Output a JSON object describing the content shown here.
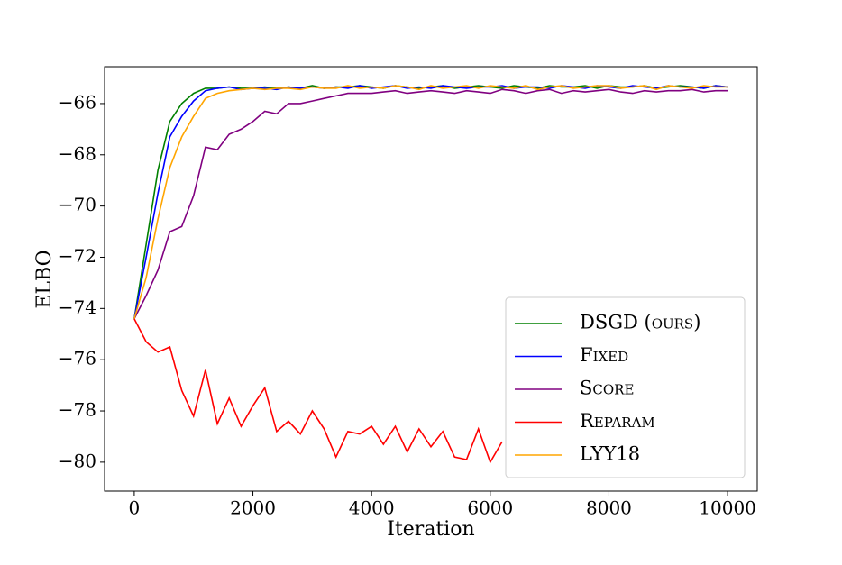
{
  "chart_data": {
    "type": "line",
    "xlabel": "Iteration",
    "ylabel": "ELBO",
    "x": [
      0,
      200,
      400,
      600,
      800,
      1000,
      1200,
      1400,
      1600,
      1800,
      2000,
      2200,
      2400,
      2600,
      2800,
      3000,
      3200,
      3400,
      3600,
      3800,
      4000,
      4200,
      4400,
      4600,
      4800,
      5000,
      5200,
      5400,
      5600,
      5800,
      6000,
      6200,
      6400,
      6600,
      6800,
      7000,
      7200,
      7400,
      7600,
      7800,
      8000,
      8200,
      8400,
      8600,
      8800,
      9000,
      9200,
      9400,
      9600,
      9800,
      10000
    ],
    "series": [
      {
        "name": "DSGD (ours)",
        "color": "#008000",
        "values": [
          -74.4,
          -71.5,
          -68.6,
          -66.7,
          -66.0,
          -65.6,
          -65.4,
          -65.4,
          -65.35,
          -65.4,
          -65.4,
          -65.35,
          -65.4,
          -65.35,
          -65.4,
          -65.3,
          -65.4,
          -65.35,
          -65.35,
          -65.3,
          -65.35,
          -65.4,
          -65.3,
          -65.35,
          -65.4,
          -65.35,
          -65.3,
          -65.4,
          -65.35,
          -65.3,
          -65.35,
          -65.4,
          -65.3,
          -65.35,
          -65.4,
          -65.3,
          -65.35,
          -65.35,
          -65.3,
          -65.4,
          -65.3,
          -65.35,
          -65.35,
          -65.3,
          -65.4,
          -65.35,
          -65.3,
          -65.35,
          -65.4,
          -65.3,
          -65.35
        ]
      },
      {
        "name": "Fixed",
        "color": "#0000ff",
        "values": [
          -74.4,
          -72.0,
          -69.5,
          -67.3,
          -66.5,
          -65.9,
          -65.5,
          -65.4,
          -65.35,
          -65.45,
          -65.4,
          -65.4,
          -65.45,
          -65.35,
          -65.4,
          -65.35,
          -65.4,
          -65.35,
          -65.4,
          -65.3,
          -65.4,
          -65.35,
          -65.3,
          -65.4,
          -65.35,
          -65.4,
          -65.3,
          -65.35,
          -65.4,
          -65.35,
          -65.35,
          -65.3,
          -65.4,
          -65.35,
          -65.35,
          -65.4,
          -65.3,
          -65.35,
          -65.4,
          -65.3,
          -65.35,
          -65.4,
          -65.3,
          -65.35,
          -65.4,
          -65.3,
          -65.35,
          -65.35,
          -65.4,
          -65.3,
          -65.35
        ]
      },
      {
        "name": "Score",
        "color": "#800080",
        "values": [
          -74.4,
          -73.5,
          -72.5,
          -71.0,
          -70.8,
          -69.6,
          -67.7,
          -67.8,
          -67.2,
          -67.0,
          -66.7,
          -66.3,
          -66.4,
          -66.0,
          -66.0,
          -65.9,
          -65.8,
          -65.7,
          -65.6,
          -65.6,
          -65.6,
          -65.55,
          -65.5,
          -65.6,
          -65.55,
          -65.5,
          -65.55,
          -65.6,
          -65.5,
          -65.55,
          -65.6,
          -65.45,
          -65.5,
          -65.6,
          -65.5,
          -65.45,
          -65.6,
          -65.5,
          -65.55,
          -65.5,
          -65.45,
          -65.55,
          -65.6,
          -65.5,
          -65.55,
          -65.5,
          -65.5,
          -65.45,
          -65.55,
          -65.5,
          -65.5
        ]
      },
      {
        "name": "Reparam",
        "color": "#ff0000",
        "values": [
          -74.4,
          -75.3,
          -75.7,
          -75.5,
          -77.2,
          -78.2,
          -76.4,
          -78.5,
          -77.5,
          -78.6,
          -77.8,
          -77.1,
          -78.8,
          -78.4,
          -78.9,
          -78.0,
          -78.7,
          -79.8,
          -78.8,
          -78.9,
          -78.6,
          -79.3,
          -78.6,
          -79.6,
          -78.7,
          -79.4,
          -78.8,
          -79.8,
          -79.9,
          -78.7,
          -80.0,
          -79.2,
          null,
          null,
          null,
          null,
          null,
          null,
          null,
          null,
          null,
          null,
          null,
          null,
          null,
          null,
          null,
          null,
          null,
          null,
          null
        ]
      },
      {
        "name": "LYY18",
        "color": "#ffa500",
        "values": [
          -74.4,
          -72.8,
          -70.5,
          -68.5,
          -67.3,
          -66.5,
          -65.8,
          -65.6,
          -65.5,
          -65.45,
          -65.4,
          -65.45,
          -65.4,
          -65.4,
          -65.45,
          -65.35,
          -65.4,
          -65.4,
          -65.3,
          -65.4,
          -65.35,
          -65.4,
          -65.3,
          -65.35,
          -65.45,
          -65.3,
          -65.4,
          -65.35,
          -65.3,
          -65.4,
          -65.3,
          -65.35,
          -65.4,
          -65.3,
          -65.45,
          -65.35,
          -65.3,
          -65.4,
          -65.35,
          -65.3,
          -65.3,
          -65.4,
          -65.35,
          -65.3,
          -65.45,
          -65.3,
          -65.35,
          -65.4,
          -65.3,
          -65.35,
          -65.35
        ]
      }
    ],
    "xlim": [
      -500,
      10500
    ],
    "xticks": [
      0,
      2000,
      4000,
      6000,
      8000,
      10000
    ],
    "ylim": [
      -81.13,
      -64.56
    ],
    "yticks": [
      {
        "value": -80,
        "label": "−80"
      },
      {
        "value": -78,
        "label": "−78"
      },
      {
        "value": -76,
        "label": "−76"
      },
      {
        "value": -74,
        "label": "−74"
      },
      {
        "value": -72,
        "label": "−72"
      },
      {
        "value": -70,
        "label": "−70"
      },
      {
        "value": -68,
        "label": "−68"
      },
      {
        "value": -66,
        "label": "−66"
      }
    ],
    "legend": "lower right"
  }
}
